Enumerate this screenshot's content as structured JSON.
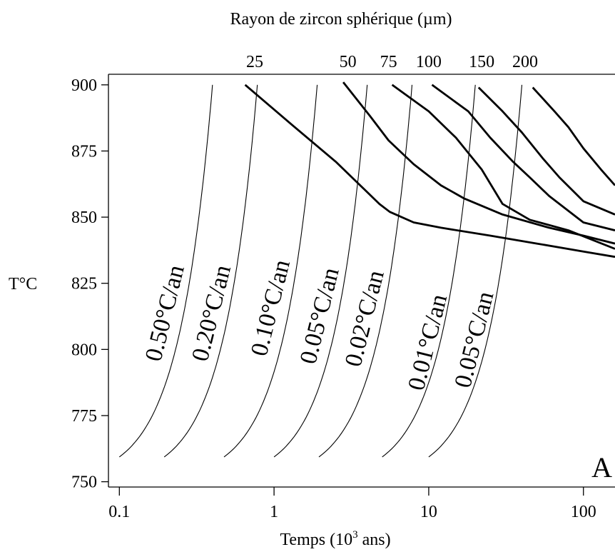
{
  "chart_data": {
    "type": "line",
    "top_axis_title": "Rayon de zircon sphérique (µm)",
    "xlabel": "Temps (10",
    "xlabel_sup": "3",
    "xlabel_tail": " ans)",
    "ylabel": "T°C",
    "panel_label": "A",
    "x_scale": "log",
    "xlim": [
      0.085,
      160
    ],
    "ylim": [
      748,
      904
    ],
    "x_ticks": [
      {
        "value": 0.1,
        "label": "0.1"
      },
      {
        "value": 1,
        "label": "1"
      },
      {
        "value": 10,
        "label": "10"
      },
      {
        "value": 100,
        "label": "100"
      }
    ],
    "y_ticks": [
      {
        "value": 750,
        "label": "750"
      },
      {
        "value": 775,
        "label": "775"
      },
      {
        "value": 800,
        "label": "800"
      },
      {
        "value": 825,
        "label": "825"
      },
      {
        "value": 850,
        "label": "850"
      },
      {
        "value": 875,
        "label": "875"
      },
      {
        "value": 900,
        "label": "900"
      }
    ],
    "top_ticks": [
      {
        "label": "25",
        "x": 0.75
      },
      {
        "label": "50",
        "x": 3.0
      },
      {
        "label": "75",
        "x": 5.5
      },
      {
        "label": "100",
        "x": 10
      },
      {
        "label": "150",
        "x": 22
      },
      {
        "label": "200",
        "x": 42
      }
    ],
    "cooling_curves": [
      {
        "label": "0.50°C/an",
        "t_end": 0.4,
        "label_at": [
          0.22,
          813
        ]
      },
      {
        "label": "0.20°C/an",
        "t_end": 0.78,
        "label_at": [
          0.44,
          813
        ]
      },
      {
        "label": "0.10°C/an",
        "t_end": 1.9,
        "label_at": [
          1.06,
          815
        ]
      },
      {
        "label": "0.05°C/an",
        "t_end": 4.0,
        "label_at": [
          2.2,
          812
        ]
      },
      {
        "label": "0.02°C/an",
        "t_end": 7.8,
        "label_at": [
          4.3,
          811
        ]
      },
      {
        "label": "0.01°C/an",
        "t_end": 20,
        "label_at": [
          11,
          802
        ]
      },
      {
        "label": "0.05°C/an",
        "t_end": 40,
        "label_at": [
          22,
          803
        ]
      }
    ],
    "series": [
      {
        "points": [
          [
            0.65,
            900
          ],
          [
            1.3,
            885
          ],
          [
            2.5,
            871
          ],
          [
            4.8,
            855
          ],
          [
            5.6,
            852
          ],
          [
            8,
            848
          ],
          [
            12,
            846
          ],
          [
            25,
            843
          ],
          [
            50,
            840
          ],
          [
            100,
            837
          ],
          [
            160,
            835
          ]
        ]
      },
      {
        "points": [
          [
            2.8,
            901
          ],
          [
            4.2,
            888
          ],
          [
            5.5,
            879
          ],
          [
            8,
            870
          ],
          [
            12,
            862
          ],
          [
            17,
            857
          ],
          [
            30,
            851
          ],
          [
            60,
            846
          ],
          [
            100,
            843
          ],
          [
            160,
            840
          ]
        ]
      },
      {
        "points": [
          [
            5.8,
            900
          ],
          [
            10,
            890
          ],
          [
            15,
            880
          ],
          [
            22,
            868
          ],
          [
            30,
            855
          ],
          [
            45,
            849
          ],
          [
            80,
            845
          ],
          [
            160,
            838
          ]
        ]
      },
      {
        "points": [
          [
            10.5,
            900
          ],
          [
            18,
            890
          ],
          [
            25,
            880
          ],
          [
            35,
            871
          ],
          [
            45,
            865
          ],
          [
            60,
            858
          ],
          [
            100,
            848
          ],
          [
            160,
            845
          ]
        ]
      },
      {
        "points": [
          [
            21,
            899
          ],
          [
            30,
            890
          ],
          [
            40,
            882
          ],
          [
            55,
            872
          ],
          [
            70,
            865
          ],
          [
            100,
            856
          ],
          [
            160,
            851
          ]
        ]
      },
      {
        "points": [
          [
            47,
            899
          ],
          [
            65,
            890
          ],
          [
            80,
            884
          ],
          [
            100,
            876
          ],
          [
            130,
            868
          ],
          [
            160,
            862
          ]
        ]
      }
    ]
  }
}
